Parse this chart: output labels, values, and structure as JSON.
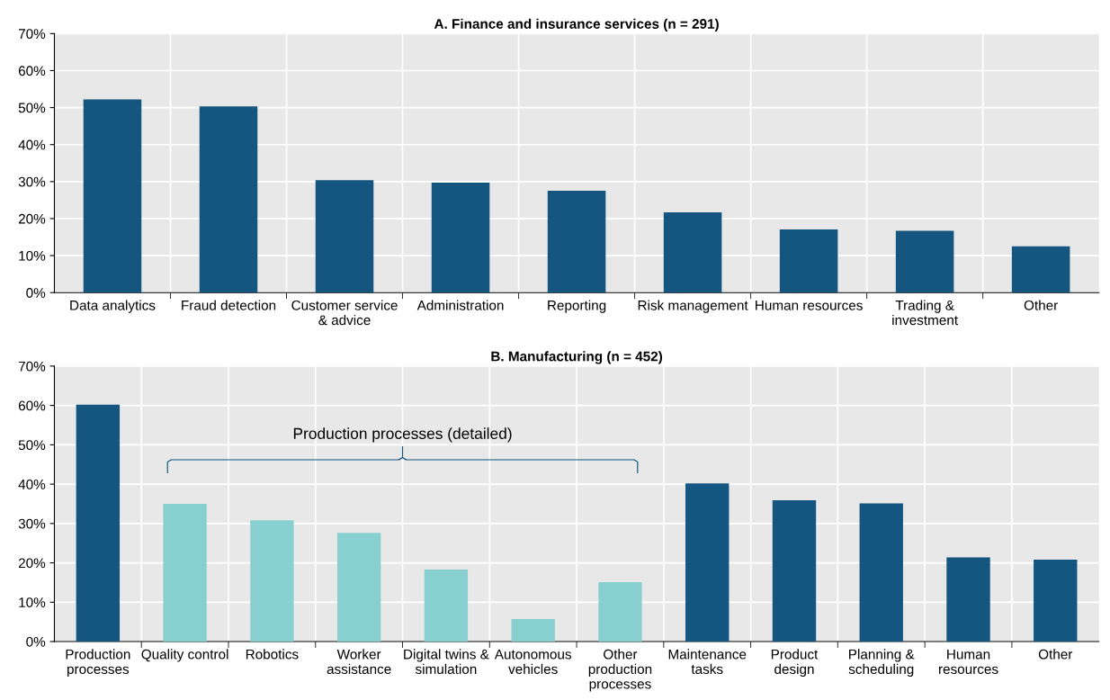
{
  "chart_data": [
    {
      "type": "bar",
      "title": "A. Finance and insurance services (n = 291)",
      "categories": [
        "Data analytics",
        "Fraud detection",
        "Customer service\n& advice",
        "Administration",
        "Reporting",
        "Risk management",
        "Human resources",
        "Trading &\ninvestment",
        "Other"
      ],
      "series": [
        {
          "color": "#14567f",
          "values": [
            52.2,
            50.3,
            30.4,
            29.7,
            27.5,
            21.7,
            17.1,
            16.7,
            12.5
          ]
        }
      ],
      "ylim": [
        0,
        70
      ],
      "yticks": [
        {
          "value": 0,
          "label": "0%"
        },
        {
          "value": 10,
          "label": "10%"
        },
        {
          "value": 20,
          "label": "20%"
        },
        {
          "value": 30,
          "label": "30%"
        },
        {
          "value": 40,
          "label": "40%"
        },
        {
          "value": 50,
          "label": "50%"
        },
        {
          "value": 60,
          "label": "60%"
        },
        {
          "value": 70,
          "label": "70%"
        }
      ],
      "grid": true
    },
    {
      "type": "bar",
      "title": "B. Manufacturing (n = 452)",
      "categories": [
        "Production\nprocesses",
        "Quality control",
        "Robotics",
        "Worker\nassistance",
        "Digital twins &\nsimulation",
        "Autonomous\nvehicles",
        "Other\nproduction\nprocesses",
        "Maintenance\ntasks",
        "Product\ndesign",
        "Planning &\nscheduling",
        "Human\nresources",
        "Other"
      ],
      "series": [
        {
          "colors": [
            "#14567f",
            "#88d0cf",
            "#88d0cf",
            "#88d0cf",
            "#88d0cf",
            "#88d0cf",
            "#88d0cf",
            "#14567f",
            "#14567f",
            "#14567f",
            "#14567f",
            "#14567f"
          ],
          "values": [
            60.2,
            35.0,
            30.8,
            27.6,
            18.3,
            5.7,
            15.1,
            40.2,
            35.9,
            35.1,
            21.4,
            20.8
          ]
        }
      ],
      "ylim": [
        0,
        70
      ],
      "yticks": [
        {
          "value": 0,
          "label": "0%"
        },
        {
          "value": 10,
          "label": "10%"
        },
        {
          "value": 20,
          "label": "20%"
        },
        {
          "value": 30,
          "label": "30%"
        },
        {
          "value": 40,
          "label": "40%"
        },
        {
          "value": 50,
          "label": "50%"
        },
        {
          "value": 60,
          "label": "60%"
        },
        {
          "value": 70,
          "label": "70%"
        }
      ],
      "grid": true,
      "annotations": [
        "Production processes (detailed)"
      ]
    }
  ]
}
